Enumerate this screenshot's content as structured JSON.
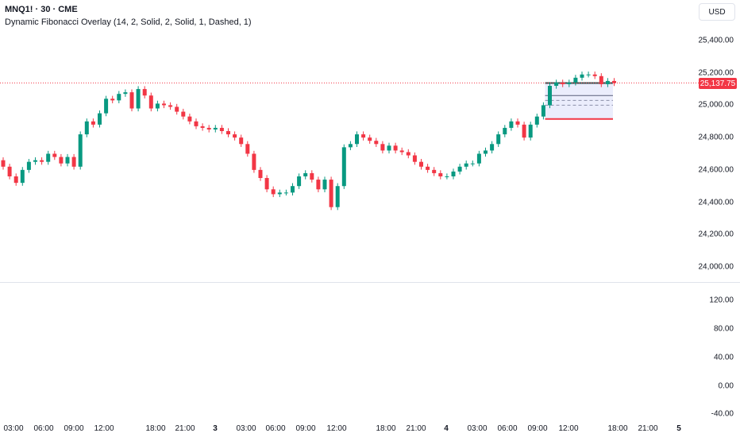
{
  "header": {
    "symbol_line": "MNQ1! · 30 · CME",
    "indicator_line": "Dynamic Fibonacci Overlay (14, 2, Solid, 2, Solid, 1, Dashed, 1)"
  },
  "currency": "USD",
  "colors": {
    "up": "#089981",
    "down": "#f23645",
    "fib_top": "#2f4f4f",
    "fib_bottom": "#f23645",
    "fib_fill": "#e6e8fb"
  },
  "last_price": "25,137.75",
  "price_axis": [
    "25,400.00",
    "25,200.00",
    "25,000.00",
    "24,800.00",
    "24,600.00",
    "24,400.00",
    "24,200.00",
    "24,000.00"
  ],
  "osc_axis": [
    "120.00",
    "80.00",
    "40.00",
    "0.00",
    "-40.00"
  ],
  "time_axis": [
    {
      "label": "03:00",
      "bold": false
    },
    {
      "label": "06:00",
      "bold": false
    },
    {
      "label": "09:00",
      "bold": false
    },
    {
      "label": "12:00",
      "bold": false
    },
    {
      "label": "18:00",
      "bold": false
    },
    {
      "label": "21:00",
      "bold": false
    },
    {
      "label": "3",
      "bold": true
    },
    {
      "label": "03:00",
      "bold": false
    },
    {
      "label": "06:00",
      "bold": false
    },
    {
      "label": "09:00",
      "bold": false
    },
    {
      "label": "12:00",
      "bold": false
    },
    {
      "label": "18:00",
      "bold": false
    },
    {
      "label": "21:00",
      "bold": false
    },
    {
      "label": "4",
      "bold": true
    },
    {
      "label": "03:00",
      "bold": false
    },
    {
      "label": "06:00",
      "bold": false
    },
    {
      "label": "09:00",
      "bold": false
    },
    {
      "label": "12:00",
      "bold": false
    },
    {
      "label": "18:00",
      "bold": false
    },
    {
      "label": "21:00",
      "bold": false
    },
    {
      "label": "5",
      "bold": true
    }
  ],
  "chart_data": {
    "type": "candlestick",
    "last": 25137.75,
    "fib": {
      "top": 25137,
      "bottom": 24915,
      "mid": 25060,
      "dash1": 25030,
      "dash2": 25000
    },
    "close": [
      24620,
      24560,
      24520,
      24600,
      24650,
      24660,
      24650,
      24700,
      24680,
      24640,
      24680,
      24620,
      24820,
      24900,
      24880,
      24950,
      25040,
      25030,
      25070,
      25080,
      24980,
      25100,
      25060,
      24980,
      25010,
      25000,
      24990,
      24960,
      24930,
      24900,
      24870,
      24860,
      24850,
      24860,
      24840,
      24820,
      24800,
      24760,
      24700,
      24600,
      24550,
      24480,
      24450,
      24460,
      24460,
      24500,
      24560,
      24580,
      24540,
      24480,
      24540,
      24370,
      24500,
      24740,
      24760,
      24820,
      24800,
      24780,
      24760,
      24720,
      24750,
      24720,
      24710,
      24690,
      24650,
      24620,
      24600,
      24580,
      24560,
      24560,
      24590,
      24620,
      24640,
      24640,
      24700,
      24720,
      24760,
      24820,
      24860,
      24900,
      24880,
      24800,
      24880,
      24930,
      25000,
      25120,
      25140,
      25130,
      25140,
      25170,
      25190,
      25190,
      25180,
      25130,
      25150,
      25137
    ]
  }
}
